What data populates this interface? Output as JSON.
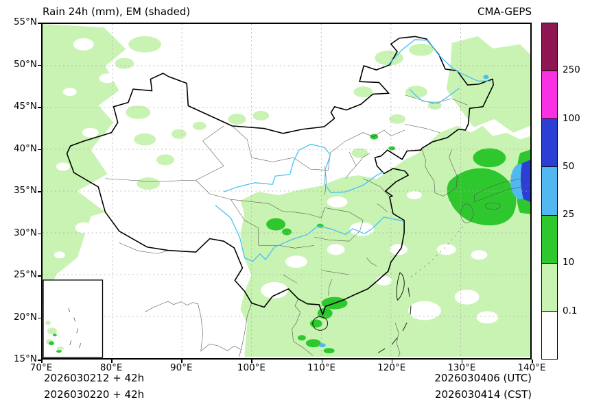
{
  "header": {
    "title": "Rain 24h (mm), EM (shaded)",
    "model": "CMA-GEPS"
  },
  "axes": {
    "x_ticks": [
      "70°E",
      "80°E",
      "90°E",
      "100°E",
      "110°E",
      "120°E",
      "130°E",
      "140°E"
    ],
    "y_ticks": [
      "55°N",
      "50°N",
      "45°N",
      "40°N",
      "35°N",
      "30°N",
      "25°N",
      "20°N",
      "15°N"
    ]
  },
  "colorbar": {
    "levels": [
      "250",
      "100",
      "50",
      "25",
      "10",
      "0.1"
    ],
    "colors_top_to_bottom": [
      "#8e1652",
      "#f832e2",
      "#2b3fd4",
      "#51b8f1",
      "#2ec82e",
      "#c9f3b2",
      "#ffffff"
    ]
  },
  "map_colors": {
    "river": "#45c1f5",
    "coastline": "#000000",
    "province_border": "#333333",
    "foreign_border": "#555555",
    "grid": "#aaaaaa"
  },
  "footer": {
    "init_utc": "2026030212 + 42h",
    "init_cst": "2026030220 + 42h",
    "valid_utc": "2026030406 (UTC)",
    "valid_cst": "2026030414 (CST)"
  },
  "chart_data": {
    "type": "heatmap",
    "title": "Rain 24h (mm), EM (shaded)",
    "model": "CMA-GEPS",
    "x_axis": {
      "label": "longitude",
      "range_deg_east": [
        70,
        140
      ],
      "tick_step_deg": 10
    },
    "y_axis": {
      "label": "latitude",
      "range_deg_north": [
        15,
        55
      ],
      "tick_step_deg": 5
    },
    "shading_levels_mm": [
      0.1,
      10,
      25,
      50,
      100,
      250
    ],
    "level_colors": [
      "#ffffff",
      "#c9f3b2",
      "#2ec82e",
      "#51b8f1",
      "#2b3fd4",
      "#f832e2",
      "#8e1652"
    ],
    "legend_position": "right",
    "grid": "dashed",
    "regions": [
      {
        "area": "Western border / Xinjiang strip (70-80E, 24-55N)",
        "rain_mm": "0.1-10"
      },
      {
        "area": "Scattered patches (84-90E, 35-43N)",
        "rain_mm": "0.1-10"
      },
      {
        "area": "Sichuan basin (102-106E, 29-32N)",
        "rain_mm": "10-25"
      },
      {
        "area": "Southeast China and adjacent seas (98-140E, 15-36N)",
        "rain_mm": "0.1-10"
      },
      {
        "area": "South China coast / Leizhou-Hainan (108-114E, 16-23N)",
        "rain_mm": "10-50"
      },
      {
        "area": "Korea Strait / western Japan (128-138E, 31-40N)",
        "rain_mm": "10-50"
      },
      {
        "area": "Far eastern edge near 139-140E, 33-39N",
        "rain_mm": "50-100"
      },
      {
        "area": "Northeast China / Amur region (115-140E, 44-55N)",
        "rain_mm": "0.1-10"
      }
    ],
    "inset": "South China Sea islands inset at bottom-left with light rain specks",
    "valid_time": "2026030406 UTC / 2026030414 CST",
    "init_time": "2026030212 UTC + 42h / 2026030220 CST + 42h"
  }
}
